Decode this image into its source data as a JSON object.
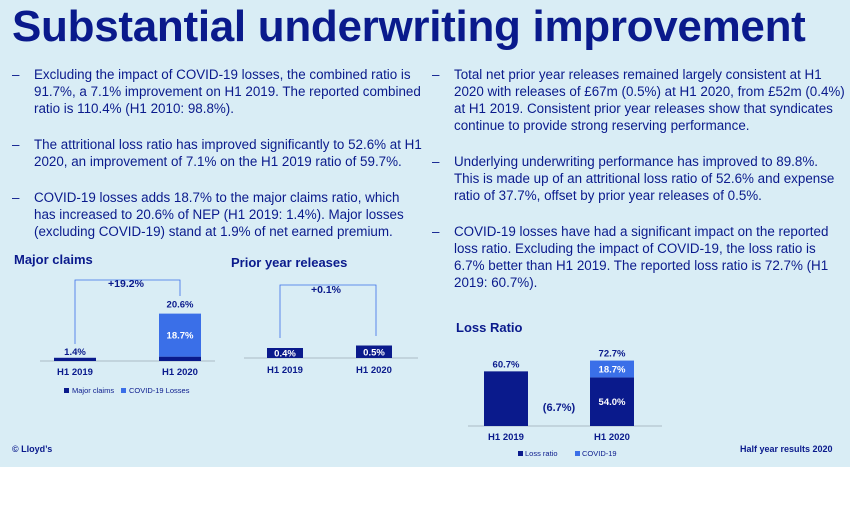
{
  "title": "Substantial underwriting improvement",
  "left_bullets": [
    "Excluding the impact of COVID-19 losses, the combined ratio is 91.7%, a 7.1% improvement on H1 2019. The reported combined ratio is 110.4% (H1 2010: 98.8%).",
    "The attritional loss ratio has improved significantly to 52.6% at H1 2020, an improvement of 7.1% on the H1 2019 ratio of 59.7%.",
    "COVID-19 losses adds 18.7% to the major claims ratio, which has increased to 20.6% of NEP (H1 2019: 1.4%). Major losses (excluding COVID-19) stand at 1.9% of net earned premium."
  ],
  "right_bullets": [
    "Total net prior year releases remained largely consistent at H1 2020 with releases of £67m (0.5%) at H1 2020, from £52m (0.4%) at H1 2019. Consistent prior year releases show that syndicates continue to provide strong reserving performance.",
    "Underlying underwriting performance has improved to 89.8%. This is made up of an attritional loss ratio of 52.6% and expense ratio of 37.7%, offset by prior year releases of 0.5%.",
    "COVID-19 losses have had a significant impact on the reported loss ratio. Excluding the impact of COVID-19, the loss ratio is 6.7% better than H1 2019. The reported loss ratio is 72.7% (H1 2019: 60.7%)."
  ],
  "dash": "–",
  "footer_left": "© Lloyd’s",
  "footer_right": "Half year results 2020",
  "colors": {
    "dark": "#0a1a8c",
    "light": "#3a6fe8",
    "bg": "#d9edf5"
  },
  "chart_data": [
    {
      "type": "bar",
      "title": "Major claims",
      "categories": [
        "H1 2019",
        "H1 2020"
      ],
      "series": [
        {
          "name": "Major claims",
          "values": [
            1.4,
            1.9
          ],
          "labels": [
            "1.4%",
            "1.9%"
          ]
        },
        {
          "name": "COVID-19 Losses",
          "values": [
            0,
            18.7
          ],
          "labels": [
            "",
            "18.7%"
          ]
        }
      ],
      "totals": [
        "",
        "20.6%"
      ],
      "change": "+19.2%"
    },
    {
      "type": "bar",
      "title": "Prior year releases",
      "categories": [
        "H1 2019",
        "H1 2020"
      ],
      "series": [
        {
          "name": "",
          "values": [
            0.4,
            0.5
          ],
          "labels": [
            "0.4%",
            "0.5%"
          ]
        }
      ],
      "change": "+0.1%"
    },
    {
      "type": "bar",
      "title": "Loss Ratio",
      "categories": [
        "H1 2019",
        "H1 2020"
      ],
      "series": [
        {
          "name": "Loss ratio",
          "values": [
            60.7,
            54.0
          ],
          "labels": [
            "",
            "54.0%"
          ]
        },
        {
          "name": "COVID-19",
          "values": [
            0,
            18.7
          ],
          "labels": [
            "",
            "18.7%"
          ]
        }
      ],
      "totals": [
        "60.7%",
        "72.7%"
      ],
      "change": "(6.7%)"
    }
  ]
}
